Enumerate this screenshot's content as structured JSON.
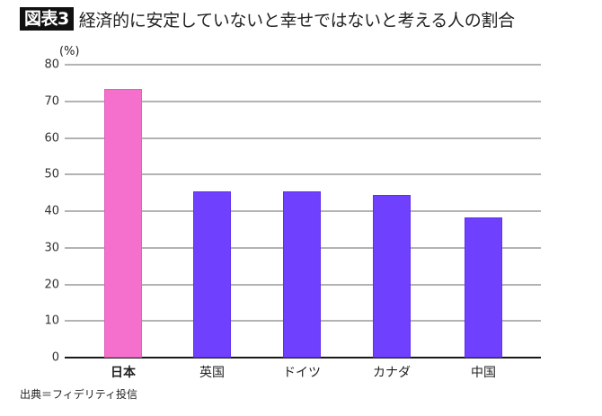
{
  "header": {
    "badge": "図表3",
    "title": "経済的に安定していないと幸せではないと考える人の割合"
  },
  "axis": {
    "unit": "(%)",
    "y_ticks": [
      "80",
      "70",
      "60",
      "50",
      "40",
      "30",
      "20",
      "10",
      "0"
    ]
  },
  "categories": [
    "日本",
    "英国",
    "ドイツ",
    "カナダ",
    "中国"
  ],
  "footer": {
    "source": "出典＝フィデリティ投信"
  },
  "colors": {
    "highlight": "#f570cc",
    "default": "#7040ff",
    "grid": "#b3b3b3",
    "baseline": "#1a1a1a"
  },
  "chart_data": {
    "type": "bar",
    "title": "経済的に安定していないと幸せではないと考える人の割合",
    "categories": [
      "日本",
      "英国",
      "ドイツ",
      "カナダ",
      "中国"
    ],
    "values": [
      73.3,
      45.4,
      45.4,
      44.4,
      38.3
    ],
    "xlabel": "",
    "ylabel": "(%)",
    "ylim": [
      0,
      80
    ],
    "yticks": [
      0,
      10,
      20,
      30,
      40,
      50,
      60,
      70,
      80
    ],
    "grid": true,
    "legend": null,
    "highlighted_category": "日本",
    "annotations": [
      "出典＝フィデリティ投信"
    ]
  }
}
